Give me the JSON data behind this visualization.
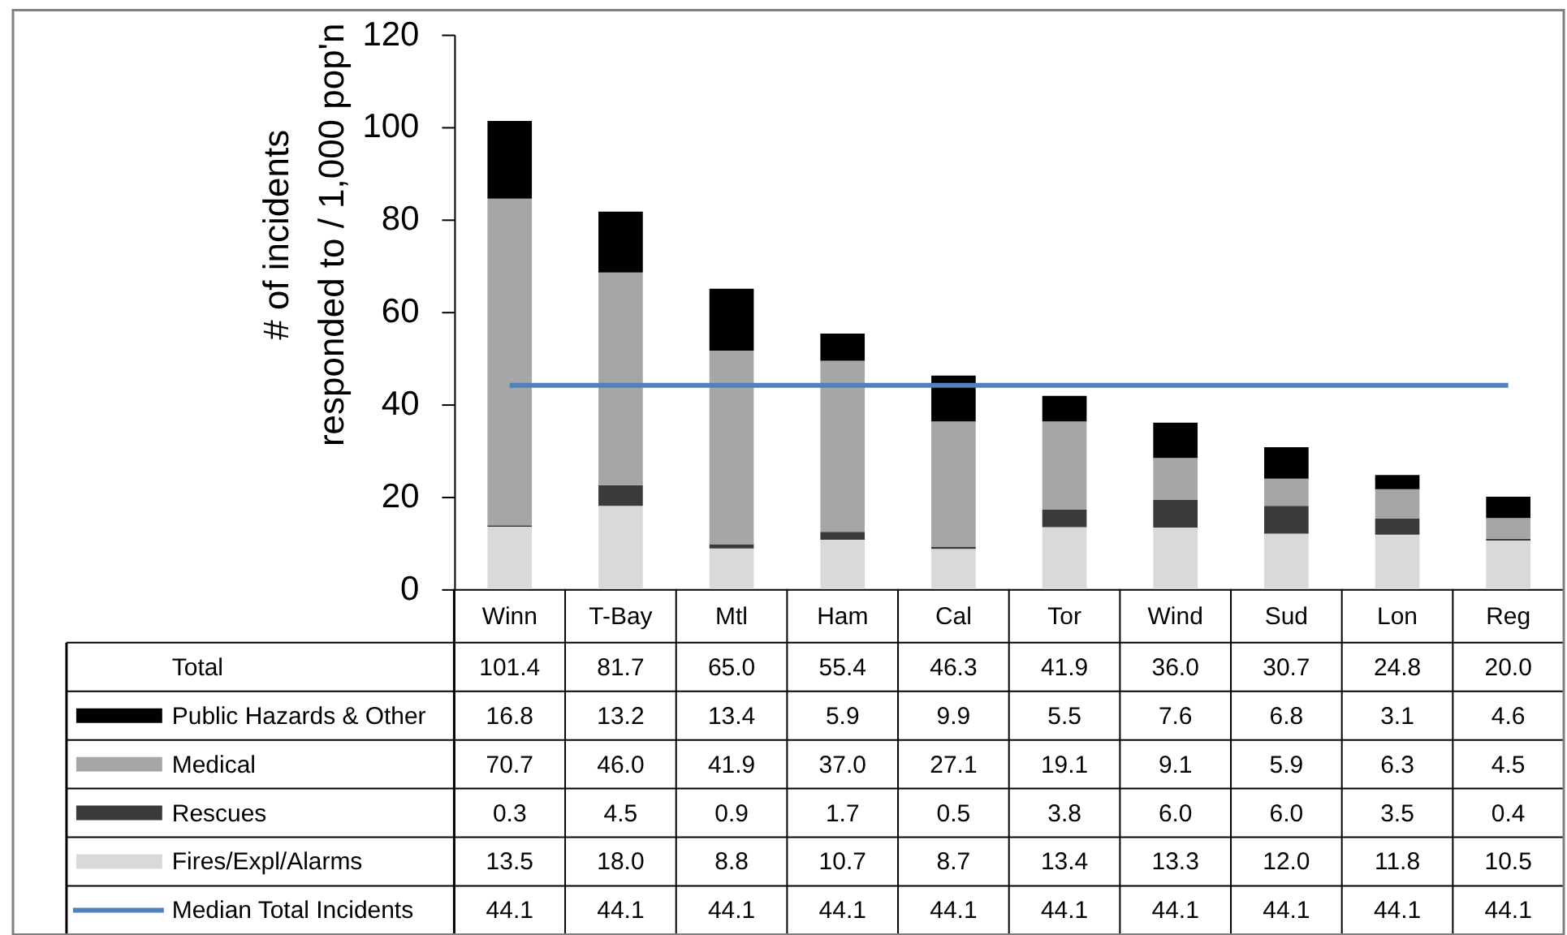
{
  "chart_data": {
    "type": "bar",
    "stacked": true,
    "ylabel": "# of incidents\nresponded to / 1,000 pop'n",
    "categories": [
      "Winn",
      "T-Bay",
      "Mtl",
      "Ham",
      "Cal",
      "Tor",
      "Wind",
      "Sud",
      "Lon",
      "Reg"
    ],
    "series": [
      {
        "name": "Fires/Expl/Alarms",
        "color": "#d9d9d9",
        "values": [
          13.5,
          18.0,
          8.8,
          10.7,
          8.7,
          13.4,
          13.3,
          12.0,
          11.8,
          10.5
        ],
        "value_labels": [
          "13.5",
          "18.0",
          "8.8",
          "10.7",
          "8.7",
          "13.4",
          "13.3",
          "12.0",
          "11.8",
          "10.5"
        ]
      },
      {
        "name": "Rescues",
        "color": "#3a3a3a",
        "values": [
          0.3,
          4.5,
          0.9,
          1.7,
          0.5,
          3.8,
          6.0,
          6.0,
          3.5,
          0.4
        ],
        "value_labels": [
          "0.3",
          "4.5",
          "0.9",
          "1.7",
          "0.5",
          "3.8",
          "6.0",
          "6.0",
          "3.5",
          "0.4"
        ]
      },
      {
        "name": "Medical",
        "color": "#a6a6a6",
        "values": [
          70.7,
          46.0,
          41.9,
          37.0,
          27.1,
          19.1,
          9.1,
          5.9,
          6.3,
          4.5
        ],
        "value_labels": [
          "70.7",
          "46.0",
          "41.9",
          "37.0",
          "27.1",
          "19.1",
          "9.1",
          "5.9",
          "6.3",
          "4.5"
        ]
      },
      {
        "name": "Public Hazards & Other",
        "color": "#000000",
        "values": [
          16.8,
          13.2,
          13.4,
          5.9,
          9.9,
          5.5,
          7.6,
          6.8,
          3.1,
          4.6
        ],
        "value_labels": [
          "16.8",
          "13.2",
          "13.4",
          "5.9",
          "9.9",
          "5.5",
          "7.6",
          "6.8",
          "3.1",
          "4.6"
        ]
      },
      {
        "name": "Median Total Incidents",
        "type": "line",
        "color": "#4f81bd",
        "values": [
          44.1,
          44.1,
          44.1,
          44.1,
          44.1,
          44.1,
          44.1,
          44.1,
          44.1,
          44.1
        ],
        "value_labels": [
          "44.1",
          "44.1",
          "44.1",
          "44.1",
          "44.1",
          "44.1",
          "44.1",
          "44.1",
          "44.1",
          "44.1"
        ]
      }
    ],
    "totals": [
      "101.4",
      "81.7",
      "65.0",
      "55.4",
      "46.3",
      "41.9",
      "36.0",
      "30.7",
      "24.8",
      "20.0"
    ],
    "annotations": [
      "Total"
    ],
    "ylim": [
      0,
      120
    ],
    "yticks": [
      0,
      20,
      40,
      60,
      80,
      100,
      120
    ],
    "legend": "bottom"
  }
}
